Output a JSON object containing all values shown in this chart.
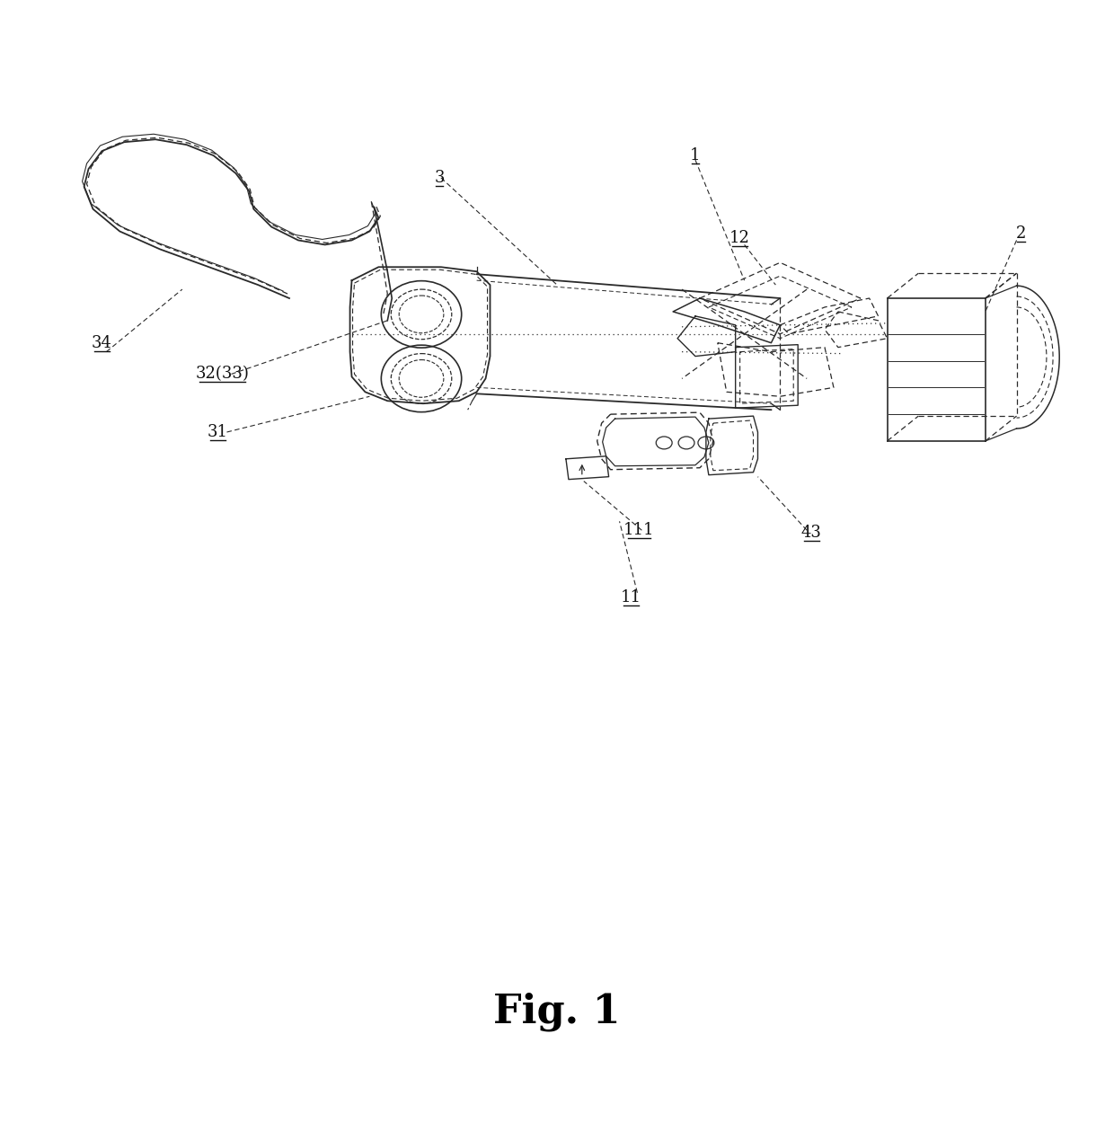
{
  "fig_label": "Fig. 1",
  "fig_label_fontsize": 32,
  "background_color": "#ffffff",
  "line_color": "#2a2a2a",
  "label_color": "#111111",
  "label_fontsize": 13,
  "fig_width": 12.4,
  "fig_height": 12.59
}
